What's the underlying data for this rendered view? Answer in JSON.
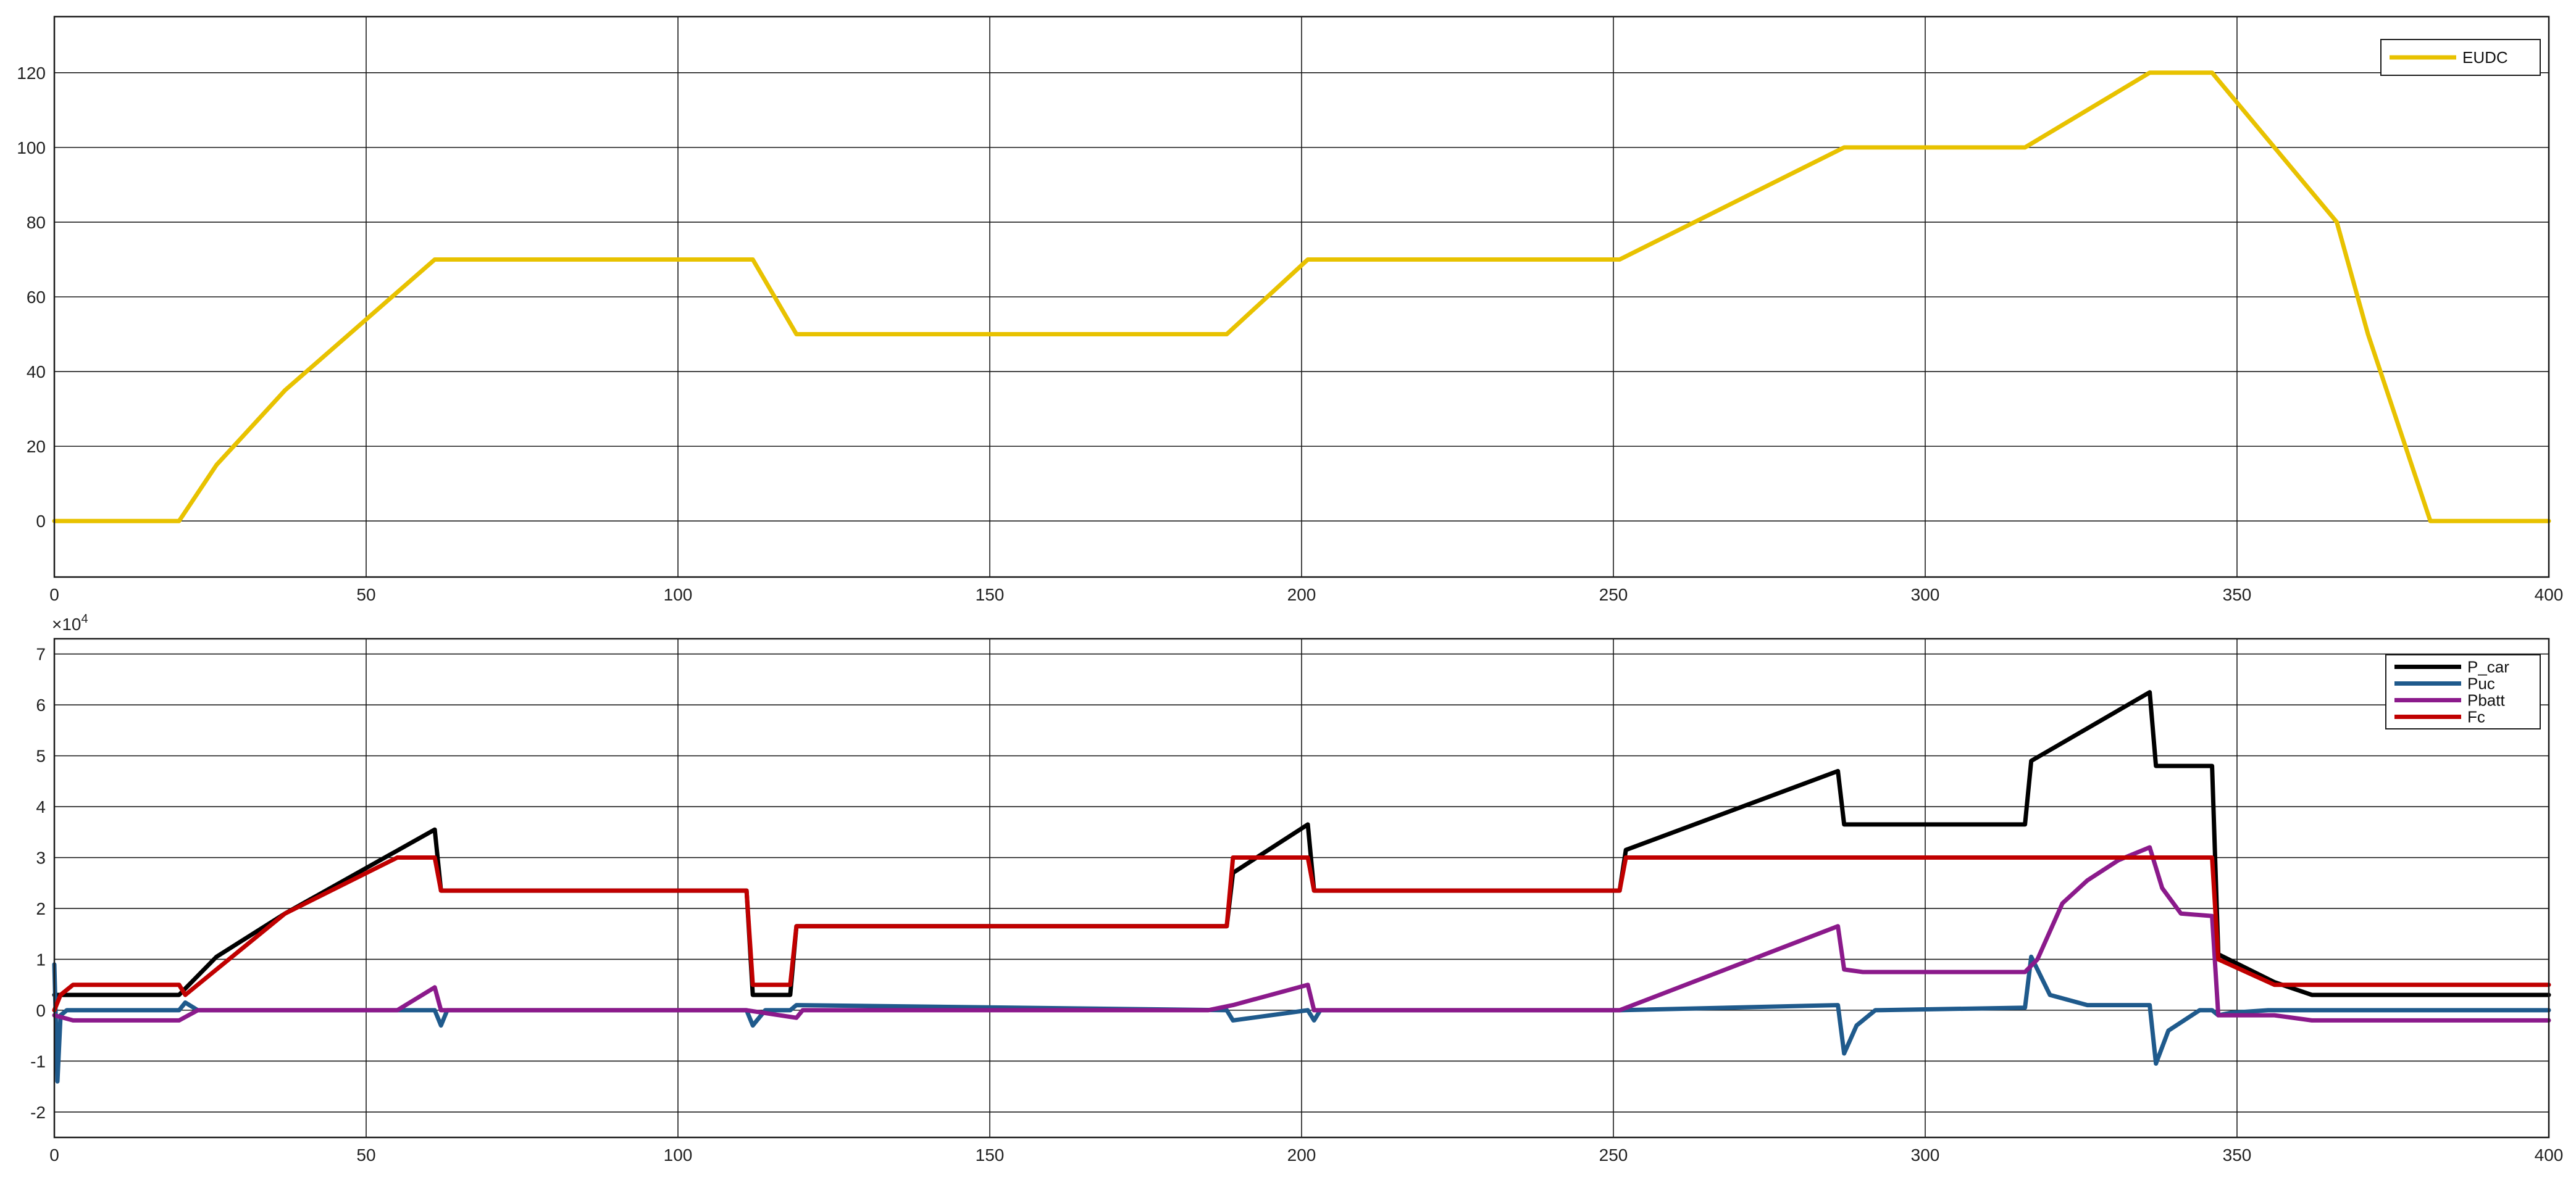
{
  "chart_data": [
    {
      "type": "line",
      "title": "",
      "xlabel": "",
      "ylabel": "",
      "xlim": [
        0,
        400
      ],
      "ylim": [
        -15,
        135
      ],
      "x_ticks": [
        "0",
        "50",
        "100",
        "150",
        "200",
        "250",
        "300",
        "350",
        "400"
      ],
      "y_ticks": [
        "0",
        "20",
        "40",
        "60",
        "80",
        "100",
        "120"
      ],
      "grid": true,
      "legend_position": "top-right",
      "series": [
        {
          "name": "EUDC",
          "color": "#e8c200",
          "x": [
            0,
            20,
            26,
            37,
            61,
            112,
            119,
            188,
            201,
            251,
            287,
            316,
            336,
            346,
            356,
            366,
            371,
            381,
            400
          ],
          "y": [
            0,
            0,
            15,
            35,
            70,
            70,
            50,
            50,
            70,
            70,
            100,
            100,
            120,
            120,
            100,
            80,
            50,
            0,
            0
          ]
        }
      ]
    },
    {
      "type": "line",
      "title": "",
      "xlabel": "",
      "ylabel": "",
      "exponent_label": "×10",
      "exponent_power": "4",
      "xlim": [
        0,
        400
      ],
      "ylim": [
        -2.5,
        7.3
      ],
      "x_ticks": [
        "0",
        "50",
        "100",
        "150",
        "200",
        "250",
        "300",
        "350",
        "400"
      ],
      "y_ticks": [
        "-2",
        "-1",
        "0",
        "1",
        "2",
        "3",
        "4",
        "5",
        "6",
        "7"
      ],
      "grid": true,
      "legend_position": "top-right",
      "series": [
        {
          "name": "P_car",
          "color": "#000000",
          "x": [
            0,
            1,
            20,
            26,
            37,
            61,
            62,
            111,
            112,
            118,
            119,
            188,
            189,
            201,
            202,
            251,
            252,
            286,
            287,
            316,
            317,
            336,
            337,
            346,
            347,
            356,
            362,
            400
          ],
          "y": [
            0.3,
            0.3,
            0.3,
            1.05,
            1.9,
            3.55,
            2.35,
            2.35,
            0.3,
            0.3,
            1.65,
            1.65,
            2.7,
            3.65,
            2.35,
            2.35,
            3.15,
            4.7,
            3.65,
            3.65,
            4.9,
            6.25,
            4.8,
            4.8,
            1.1,
            0.55,
            0.3,
            0.3
          ]
        },
        {
          "name": "Puc",
          "color": "#1f5a8c",
          "x": [
            0,
            0.5,
            1,
            2,
            20,
            21,
            23,
            61,
            62,
            63,
            111,
            112,
            114,
            118,
            119,
            188,
            189,
            201,
            202,
            203,
            251,
            286,
            287,
            289,
            292,
            316,
            317,
            320,
            326,
            336,
            337,
            339,
            344,
            346,
            347,
            349,
            355,
            400
          ],
          "y": [
            0.9,
            -1.4,
            -0.1,
            0,
            0,
            0.15,
            0,
            0,
            -0.3,
            0,
            0,
            -0.3,
            0,
            0,
            0.1,
            0,
            -0.2,
            0,
            -0.2,
            0,
            0,
            0.1,
            -0.85,
            -0.3,
            0,
            0.05,
            1.05,
            0.3,
            0.1,
            0.1,
            -1.05,
            -0.4,
            0,
            0,
            -0.1,
            -0.05,
            0,
            0
          ]
        },
        {
          "name": "Pbatt",
          "color": "#8b1a8b",
          "x": [
            0,
            3,
            20,
            23,
            55,
            61,
            62,
            111,
            119,
            120,
            185,
            189,
            201,
            202,
            251,
            286,
            287,
            290,
            316,
            318,
            322,
            326,
            331,
            336,
            338,
            341,
            346,
            347,
            356,
            362,
            400
          ],
          "y": [
            -0.1,
            -0.2,
            -0.2,
            0,
            0,
            0.45,
            0,
            0,
            -0.15,
            0,
            0,
            0.1,
            0.5,
            0,
            0,
            1.65,
            0.8,
            0.75,
            0.75,
            1.0,
            2.1,
            2.55,
            2.95,
            3.2,
            2.4,
            1.9,
            1.85,
            -0.1,
            -0.1,
            -0.2,
            -0.2
          ]
        },
        {
          "name": "Fc",
          "color": "#c00000",
          "x": [
            0,
            1,
            3,
            20,
            21,
            37,
            55,
            61,
            62,
            111,
            112,
            118,
            119,
            188,
            189,
            201,
            202,
            251,
            252,
            346,
            347,
            356,
            400
          ],
          "y": [
            0,
            0.3,
            0.5,
            0.5,
            0.3,
            1.9,
            3.0,
            3.0,
            2.35,
            2.35,
            0.5,
            0.5,
            1.65,
            1.65,
            3.0,
            3.0,
            2.35,
            2.35,
            3.0,
            3.0,
            1.0,
            0.5,
            0.5
          ]
        }
      ]
    }
  ]
}
